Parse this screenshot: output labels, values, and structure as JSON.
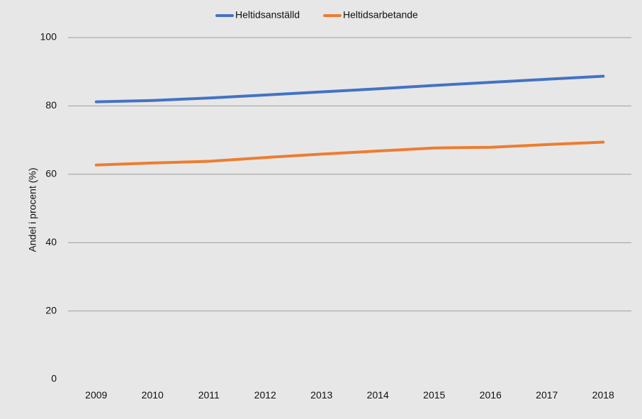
{
  "chart_data": {
    "type": "line",
    "title": "",
    "xlabel": "",
    "ylabel": "Andel i procent (%)",
    "categories": [
      "2009",
      "2010",
      "2011",
      "2012",
      "2013",
      "2014",
      "2015",
      "2016",
      "2017",
      "2018"
    ],
    "ylim": [
      0,
      100
    ],
    "yticks": [
      "0",
      "20",
      "40",
      "60",
      "80",
      "100"
    ],
    "grid": true,
    "legend_position": "top-center",
    "series": [
      {
        "name": "Heltidsanställd",
        "color": "#4472c4",
        "values": [
          81.2,
          81.6,
          82.3,
          83.2,
          84.1,
          85.0,
          86.0,
          86.9,
          87.8,
          88.7
        ]
      },
      {
        "name": "Heltidsarbetande",
        "color": "#ed7d31",
        "values": [
          62.7,
          63.3,
          63.8,
          64.9,
          65.9,
          66.8,
          67.7,
          67.9,
          68.7,
          69.4
        ]
      }
    ]
  }
}
